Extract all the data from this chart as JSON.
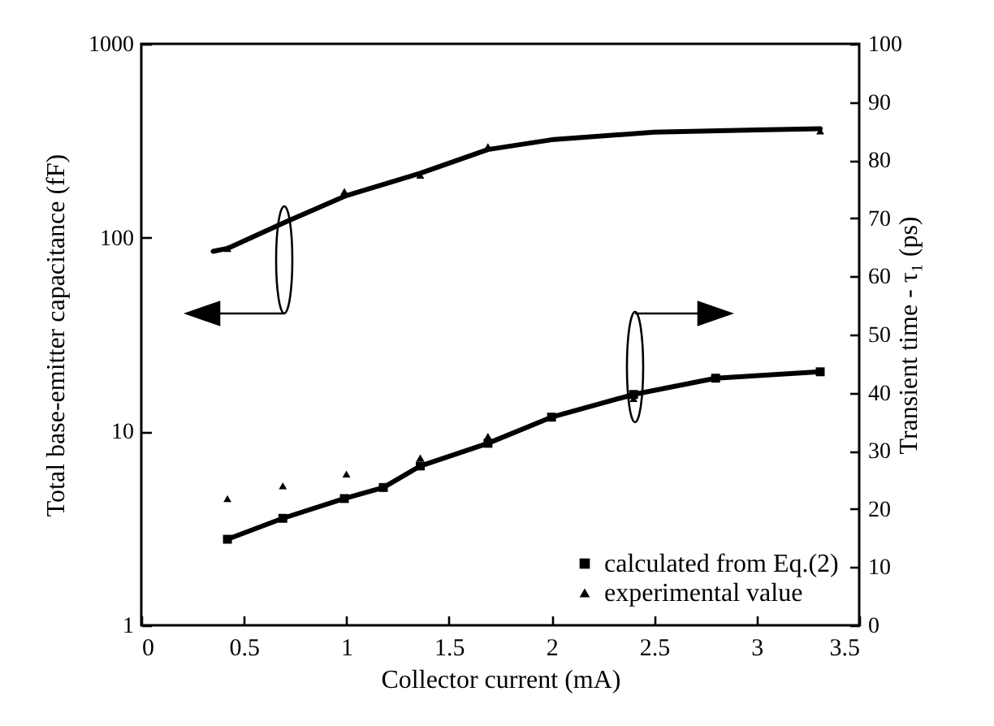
{
  "chart_data": {
    "type": "line",
    "xlabel": "Collector current (mA)",
    "ylabel": "Total base-emitter capacitance (fF)",
    "y2label": "Transient time - τ₁ (ps)",
    "xlim": [
      0,
      3.5
    ],
    "xticks": [
      0,
      0.5,
      1,
      1.5,
      2,
      2.5,
      3,
      3.5
    ],
    "ylim": [
      1,
      1000
    ],
    "yticks": [
      1,
      10,
      100,
      1000
    ],
    "log": "y",
    "y2lim": [
      0,
      100
    ],
    "y2ticks": [
      0,
      10,
      20,
      30,
      40,
      50,
      60,
      70,
      80,
      90,
      100
    ],
    "grid": false,
    "legend": "bottom right",
    "series": [
      {
        "color": "#000000",
        "marker": "none",
        "x": [
          0.35,
          0.42,
          0.7,
          1.0,
          1.36,
          1.69,
          2.0,
          2.5,
          3.0,
          3.31
        ],
        "values": [
          85,
          88,
          120,
          165,
          215,
          285,
          320,
          350,
          360,
          365
        ]
      },
      {
        "type": "scatter",
        "color": "#000000",
        "marker": "triangle",
        "x": [
          0.42,
          0.99,
          1.36,
          1.69,
          3.31
        ],
        "values": [
          88,
          173,
          210,
          295,
          355
        ]
      },
      {
        "axis": "y2",
        "name": "calculated from Eq.(2)",
        "color": "#000000",
        "marker": "square",
        "x": [
          0.42,
          0.69,
          0.99,
          1.18,
          1.36,
          1.69,
          2.0,
          2.4,
          2.8,
          3.31
        ],
        "values": [
          14.8,
          18.4,
          21.8,
          23.7,
          27.4,
          31.3,
          35.8,
          39.7,
          42.5,
          43.6
        ]
      },
      {
        "type": "scatter",
        "axis": "y2",
        "name": "experimental value",
        "color": "#000000",
        "marker": "triangle",
        "x": [
          0.42,
          0.69,
          1.0,
          1.36,
          1.69,
          2.4
        ],
        "values": [
          21.8,
          24,
          26,
          28.8,
          32.5,
          39
        ]
      }
    ]
  }
}
